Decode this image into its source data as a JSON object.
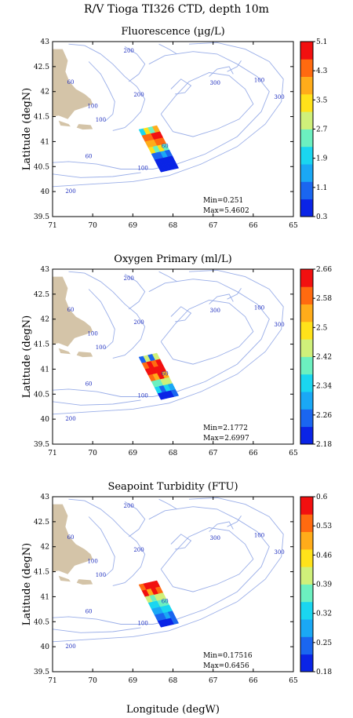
{
  "figure": {
    "title": "R/V Tioga TI326 CTD, depth 10m",
    "xlabel": "Longitude (degW)",
    "ylabel": "Latitude (degN)"
  },
  "colors": {
    "land": "#d4c4a8",
    "contour": "#9aaee8",
    "contour_label": "#1f2fbf",
    "colormap": [
      "#0a24e6",
      "#1a66f0",
      "#1aa8f5",
      "#1ad6f0",
      "#6cf0c0",
      "#cff07a",
      "#ffe21a",
      "#ffac1a",
      "#ff6a10",
      "#f21010"
    ]
  },
  "axes": {
    "x_ticks": [
      "71",
      "70",
      "69",
      "68",
      "67",
      "66",
      "65"
    ],
    "y_ticks": [
      "43",
      "42.5",
      "42",
      "41.5",
      "41",
      "40.5",
      "40",
      "39.5"
    ],
    "xlim": [
      71,
      65
    ],
    "ylim": [
      39.5,
      43
    ]
  },
  "bathymetry_labels": [
    "200",
    "100",
    "300",
    "100",
    "300",
    "60",
    "200",
    "100",
    "60",
    "60",
    "100",
    "200"
  ],
  "chart_data": [
    {
      "type": "heatmap",
      "title": "Fluorescence (µg/L)",
      "colorbar_ticks": [
        "5.1",
        "4.3",
        "3.5",
        "2.7",
        "1.9",
        "1.1",
        "0.3"
      ],
      "range": [
        0.3,
        5.1
      ],
      "min_label": "Min=0.251",
      "max_label": "Max=5.4602",
      "transect_profile": [
        2.5,
        4.6,
        4.3,
        3.5,
        1.2,
        0.6,
        0.3
      ]
    },
    {
      "type": "heatmap",
      "title": "Oxygen Primary (ml/L)",
      "colorbar_ticks": [
        "2.66",
        "2.58",
        "2.5",
        "2.42",
        "2.34",
        "2.26",
        "2.18"
      ],
      "range": [
        2.18,
        2.66
      ],
      "min_label": "Min=2.1772",
      "max_label": "Max=2.6997",
      "transect_profile": [
        2.26,
        2.6,
        2.66,
        2.62,
        2.44,
        2.36,
        2.2
      ]
    },
    {
      "type": "heatmap",
      "title": "Seapoint Turbidity (FTU)",
      "colorbar_ticks": [
        "0.6",
        "0.53",
        "0.46",
        "0.39",
        "0.32",
        "0.25",
        "0.18"
      ],
      "range": [
        0.18,
        0.6
      ],
      "min_label": "Min=0.17516",
      "max_label": "Max=0.6456",
      "transect_profile": [
        0.56,
        0.6,
        0.42,
        0.36,
        0.32,
        0.27,
        0.2
      ]
    }
  ]
}
